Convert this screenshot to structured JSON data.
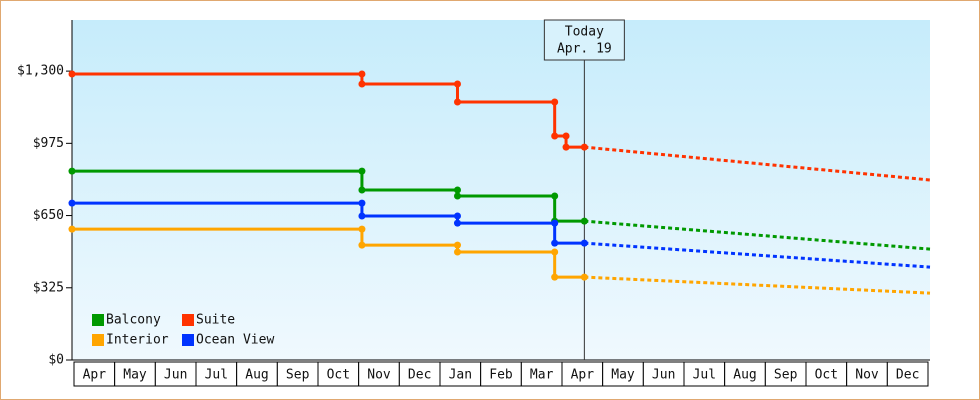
{
  "chart_data": {
    "type": "line",
    "step": true,
    "categories": [
      "Apr",
      "May",
      "Jun",
      "Jul",
      "Aug",
      "Sep",
      "Oct",
      "Nov",
      "Dec",
      "Jan",
      "Feb",
      "Mar",
      "Apr",
      "May",
      "Jun",
      "Jul",
      "Aug",
      "Sep",
      "Oct",
      "Nov",
      "Dec"
    ],
    "xlim": [
      0,
      21.1
    ],
    "ylim": [
      0,
      1530
    ],
    "yticks": [
      {
        "value": 0,
        "label": "$0"
      },
      {
        "value": 325,
        "label": "$325"
      },
      {
        "value": 650,
        "label": "$650"
      },
      {
        "value": 975,
        "label": "$975"
      },
      {
        "value": 1300,
        "label": "$1,300"
      }
    ],
    "annotation": {
      "x": 12.6,
      "lines": [
        "Today",
        "Apr. 19"
      ]
    },
    "legend": "lower left",
    "series": [
      {
        "name": "Balcony",
        "color": "#009900",
        "x": [
          0,
          7.13,
          7.13,
          9.48,
          9.48,
          11.87,
          11.87,
          12.6
        ],
        "values": [
          850,
          850,
          765,
          765,
          738,
          738,
          625,
          625
        ],
        "projection_x": [
          12.6,
          21.1
        ],
        "projection_values": [
          625,
          499
        ]
      },
      {
        "name": "Suite",
        "color": "#ff3300",
        "x": [
          0,
          7.13,
          7.13,
          9.48,
          9.48,
          11.87,
          11.87,
          12.15,
          12.15,
          12.6
        ],
        "values": [
          1287,
          1287,
          1242,
          1242,
          1161,
          1161,
          1008,
          1008,
          958,
          958
        ],
        "projection_x": [
          12.6,
          21.1
        ],
        "projection_values": [
          958,
          810
        ]
      },
      {
        "name": "Interior",
        "color": "#ffa500",
        "x": [
          0,
          7.13,
          7.13,
          9.48,
          9.48,
          11.87,
          11.87,
          12.6
        ],
        "values": [
          589,
          589,
          517,
          517,
          486,
          486,
          373,
          373
        ],
        "projection_x": [
          12.6,
          21.1
        ],
        "projection_values": [
          373,
          301
        ]
      },
      {
        "name": "Ocean View",
        "color": "#0033ff",
        "x": [
          0,
          7.13,
          7.13,
          9.48,
          9.48,
          11.87,
          11.87,
          12.6
        ],
        "values": [
          706,
          706,
          648,
          648,
          616,
          616,
          526,
          526
        ],
        "projection_x": [
          12.6,
          21.1
        ],
        "projection_values": [
          526,
          418
        ]
      }
    ]
  }
}
